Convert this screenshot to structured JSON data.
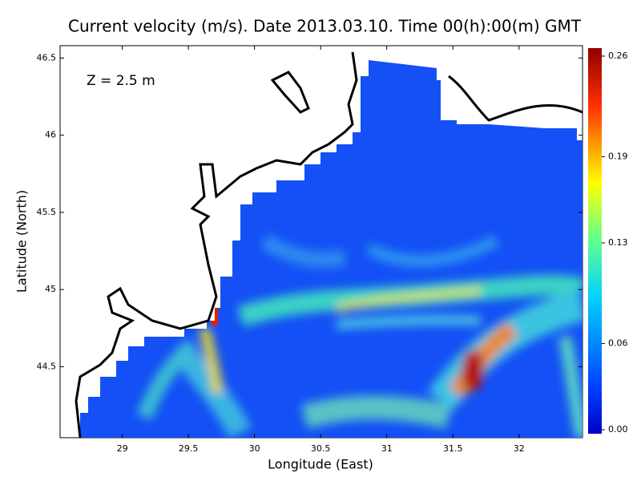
{
  "title": "Current velocity (m/s). Date 2013.03.10. Time 00(h):00(m) GMT",
  "annotation": "Z = 2.5 m",
  "x_label": "Longitude (East)",
  "y_label": "Latitude (North)",
  "xlim": [
    28.53,
    32.48
  ],
  "ylim": [
    44.04,
    46.58
  ],
  "xticks": [
    29,
    29.5,
    30,
    30.5,
    31,
    31.5,
    32
  ],
  "yticks": [
    44.5,
    45,
    45.5,
    46,
    46.5
  ],
  "colorbar": {
    "lim": [
      0,
      0.26
    ],
    "ticks": [
      {
        "value": 0,
        "label": "0.00"
      },
      0.06,
      0.13,
      0.19,
      0.26
    ]
  }
}
